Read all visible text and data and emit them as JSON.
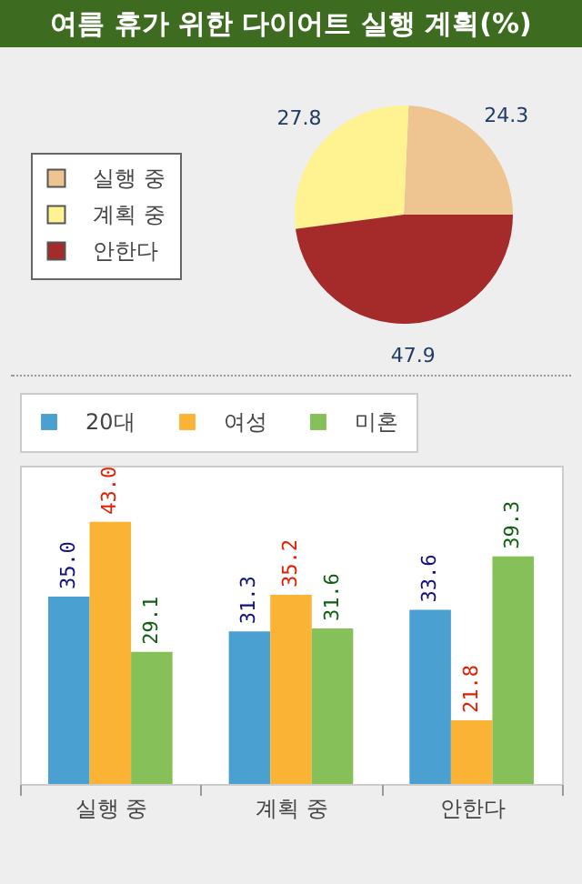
{
  "chart_data": [
    {
      "type": "pie",
      "title": "여름 휴가 위한 다이어트 실행 계획(%)",
      "categories": [
        "실행 중",
        "계획 중",
        "안한다"
      ],
      "values": [
        24.3,
        27.8,
        47.9
      ],
      "colors": [
        "#eec591",
        "#fff291",
        "#a52a2a"
      ],
      "data_labels": true,
      "legend": "left"
    },
    {
      "type": "bar",
      "categories": [
        "실행 중",
        "계획 중",
        "안한다"
      ],
      "series": [
        {
          "name": "20대",
          "color": "#4aa0d0",
          "values": [
            35.0,
            31.3,
            33.6
          ],
          "value_labels": [
            "35.0",
            "31.3",
            "33.6"
          ]
        },
        {
          "name": "여성",
          "color": "#fbb336",
          "values": [
            43.0,
            35.2,
            21.8
          ],
          "value_labels": [
            "43.0",
            "35.2",
            "21.8"
          ]
        },
        {
          "name": "미혼",
          "color": "#86c058",
          "values": [
            29.1,
            31.6,
            39.3
          ],
          "value_labels": [
            "29.1",
            "31.6",
            "39.3"
          ]
        }
      ],
      "ylim": [
        15,
        49
      ],
      "legend": "top left"
    }
  ]
}
